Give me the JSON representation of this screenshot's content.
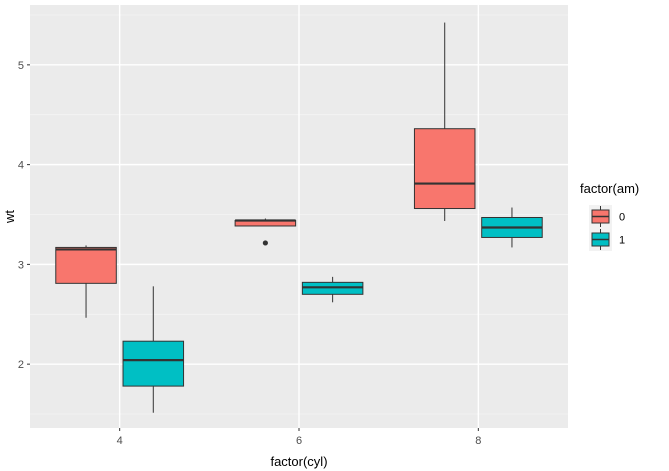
{
  "chart_data": {
    "type": "boxplot",
    "xlabel": "factor(cyl)",
    "ylabel": "wt",
    "categories": [
      "4",
      "6",
      "8"
    ],
    "y_ticks": [
      "2",
      "3",
      "4",
      "5"
    ],
    "ylim": [
      1.36,
      5.6
    ],
    "grid": true,
    "legend": {
      "title": "factor(am)",
      "position": "right",
      "entries": [
        "0",
        "1"
      ]
    },
    "series": [
      {
        "name": "0",
        "color": "#F8766D",
        "boxes": [
          {
            "category": "4",
            "whisker_low": 2.465,
            "q1": 2.81,
            "median": 3.15,
            "q3": 3.17,
            "whisker_high": 3.19,
            "outliers": []
          },
          {
            "category": "6",
            "whisker_low": 3.385,
            "q1": 3.385,
            "median": 3.44,
            "q3": 3.44,
            "whisker_high": 3.46,
            "outliers": [
              3.215
            ]
          },
          {
            "category": "8",
            "whisker_low": 3.435,
            "q1": 3.56,
            "median": 3.81,
            "q3": 4.36,
            "whisker_high": 5.424,
            "outliers": []
          }
        ]
      },
      {
        "name": "1",
        "color": "#00BFC4",
        "boxes": [
          {
            "category": "4",
            "whisker_low": 1.513,
            "q1": 1.78,
            "median": 2.04,
            "q3": 2.23,
            "whisker_high": 2.78,
            "outliers": []
          },
          {
            "category": "6",
            "whisker_low": 2.62,
            "q1": 2.7,
            "median": 2.77,
            "q3": 2.82,
            "whisker_high": 2.875,
            "outliers": []
          },
          {
            "category": "8",
            "whisker_low": 3.17,
            "q1": 3.27,
            "median": 3.37,
            "q3": 3.47,
            "whisker_high": 3.57,
            "outliers": []
          }
        ]
      }
    ]
  }
}
